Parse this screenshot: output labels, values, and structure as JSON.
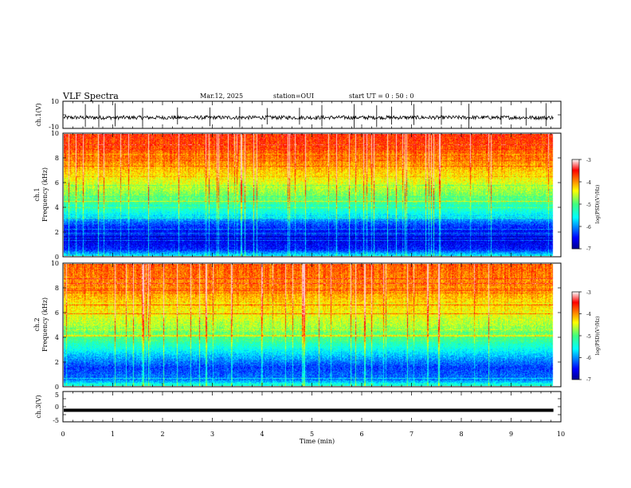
{
  "header": {
    "title": "VLF Spectra",
    "date": "Mar.12, 2025",
    "station": "station=OUI",
    "start": "start  UT =   0 : 50 : 0"
  },
  "chart_data": [
    {
      "type": "line",
      "panel": "ch1-waveform",
      "ylabel": "ch.1(V)",
      "ylim": [
        -10,
        10
      ],
      "yticks": [
        "10",
        "-10"
      ],
      "xlim": [
        0,
        10
      ],
      "baseline_v": -2,
      "noise_amplitude_v": 2,
      "spike_times_min": [
        0.45,
        0.72,
        1.05,
        1.6,
        2.3,
        2.95,
        3.55,
        4.1,
        4.75,
        5.2,
        5.85,
        6.3,
        6.6,
        7.05,
        7.6,
        8.15,
        8.8,
        9.3,
        9.7
      ]
    },
    {
      "type": "heatmap",
      "panel": "ch1-spectrogram",
      "ylabel": "ch.1\nFrequency (kHz)",
      "ylim": [
        0,
        10
      ],
      "yticks": [
        "0",
        "2",
        "4",
        "6",
        "8",
        "10"
      ],
      "xlim": [
        0,
        10
      ],
      "color_scale": {
        "label": "log(PSD)(V²/Hz)",
        "range": [
          -7,
          -3
        ],
        "ticks": [
          "-3",
          "-4",
          "-5",
          "-6",
          "-7"
        ]
      },
      "band_profile_khz": [
        {
          "f": 0.0,
          "v": -5.6
        },
        {
          "f": 0.5,
          "v": -6.4
        },
        {
          "f": 1.5,
          "v": -6.7
        },
        {
          "f": 2.5,
          "v": -6.3
        },
        {
          "f": 3.5,
          "v": -5.5
        },
        {
          "f": 4.5,
          "v": -5.0
        },
        {
          "f": 6.0,
          "v": -4.5
        },
        {
          "f": 8.0,
          "v": -3.9
        },
        {
          "f": 10.0,
          "v": -3.6
        }
      ],
      "data_end_min": 9.85
    },
    {
      "type": "heatmap",
      "panel": "ch2-spectrogram",
      "ylabel": "ch.2\nFrequency (kHz)",
      "ylim": [
        0,
        10
      ],
      "yticks": [
        "0",
        "2",
        "4",
        "6",
        "8",
        "10"
      ],
      "xlim": [
        0,
        10
      ],
      "color_scale": {
        "label": "log(PSD)(V²/Hz)",
        "range": [
          -7,
          -3
        ],
        "ticks": [
          "-3",
          "-4",
          "-5",
          "-6",
          "-7"
        ]
      },
      "band_profile_khz": [
        {
          "f": 0.0,
          "v": -5.4
        },
        {
          "f": 0.5,
          "v": -6.1
        },
        {
          "f": 1.5,
          "v": -6.3
        },
        {
          "f": 2.5,
          "v": -5.8
        },
        {
          "f": 3.5,
          "v": -5.2
        },
        {
          "f": 4.5,
          "v": -4.8
        },
        {
          "f": 6.0,
          "v": -4.4
        },
        {
          "f": 8.0,
          "v": -4.0
        },
        {
          "f": 10.0,
          "v": -3.8
        }
      ],
      "data_end_min": 9.85
    },
    {
      "type": "line",
      "panel": "ch3-waveform",
      "ylabel": "ch.3(V)",
      "ylim": [
        -5,
        5
      ],
      "yticks": [
        "5",
        "0",
        "-5"
      ],
      "xlim": [
        0,
        10
      ],
      "constant_v": -1.2
    }
  ],
  "x_axis": {
    "label": "Time (min)",
    "ticks": [
      "0",
      "1",
      "2",
      "3",
      "4",
      "5",
      "6",
      "7",
      "8",
      "9",
      "10"
    ]
  }
}
